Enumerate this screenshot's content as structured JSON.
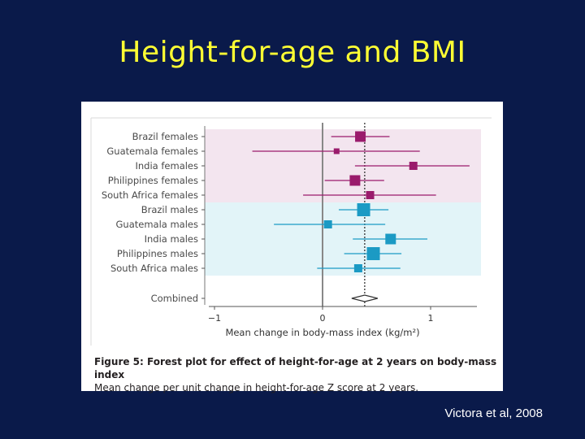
{
  "slide": {
    "title": "Height-for-age and BMI",
    "citation": "Victora et al, 2008"
  },
  "figure": {
    "caption_title": "Figure 5: Forest plot for effect of height-for-age at 2 years on body-mass index",
    "caption_sub": "Mean change per unit change in height-for-age Z score at 2 years."
  },
  "colors": {
    "female": "#9a1b6c",
    "male": "#1b9ac4",
    "female_band": "#f3e5ef",
    "male_band": "#e2f4f8",
    "background": "#0a1a4a",
    "title": "#ffff33"
  },
  "chart_data": {
    "type": "forest",
    "xlabel": "Mean change in body-mass index (kg/m²)",
    "xlim": [
      -1.05,
      1.4
    ],
    "xticks": [
      -1,
      0,
      1
    ],
    "tick_labels": [
      "−1",
      "0",
      "1"
    ],
    "pooled_estimate": 0.39,
    "studies": [
      {
        "label": "Brazil females",
        "estimate": 0.35,
        "ci": [
          0.08,
          0.62
        ],
        "group": "female",
        "weight": 3
      },
      {
        "label": "Guatemala females",
        "estimate": 0.13,
        "ci": [
          -0.65,
          0.9
        ],
        "group": "female",
        "weight": 1
      },
      {
        "label": "India females",
        "estimate": 0.84,
        "ci": [
          0.3,
          1.36
        ],
        "group": "female",
        "weight": 2
      },
      {
        "label": "Philippines females",
        "estimate": 0.3,
        "ci": [
          0.02,
          0.57
        ],
        "group": "female",
        "weight": 3
      },
      {
        "label": "South Africa females",
        "estimate": 0.44,
        "ci": [
          -0.18,
          1.05
        ],
        "group": "female",
        "weight": 2
      },
      {
        "label": "Brazil males",
        "estimate": 0.38,
        "ci": [
          0.15,
          0.61
        ],
        "group": "male",
        "weight": 4
      },
      {
        "label": "Guatemala males",
        "estimate": 0.05,
        "ci": [
          -0.45,
          0.58
        ],
        "group": "male",
        "weight": 2
      },
      {
        "label": "India males",
        "estimate": 0.63,
        "ci": [
          0.28,
          0.97
        ],
        "group": "male",
        "weight": 3
      },
      {
        "label": "Philippines males",
        "estimate": 0.47,
        "ci": [
          0.2,
          0.73
        ],
        "group": "male",
        "weight": 4
      },
      {
        "label": "South Africa males",
        "estimate": 0.33,
        "ci": [
          -0.05,
          0.72
        ],
        "group": "male",
        "weight": 2
      },
      {
        "label": "Combined",
        "estimate": 0.39,
        "ci": [
          0.27,
          0.51
        ],
        "group": "combined",
        "weight": 0
      }
    ]
  }
}
